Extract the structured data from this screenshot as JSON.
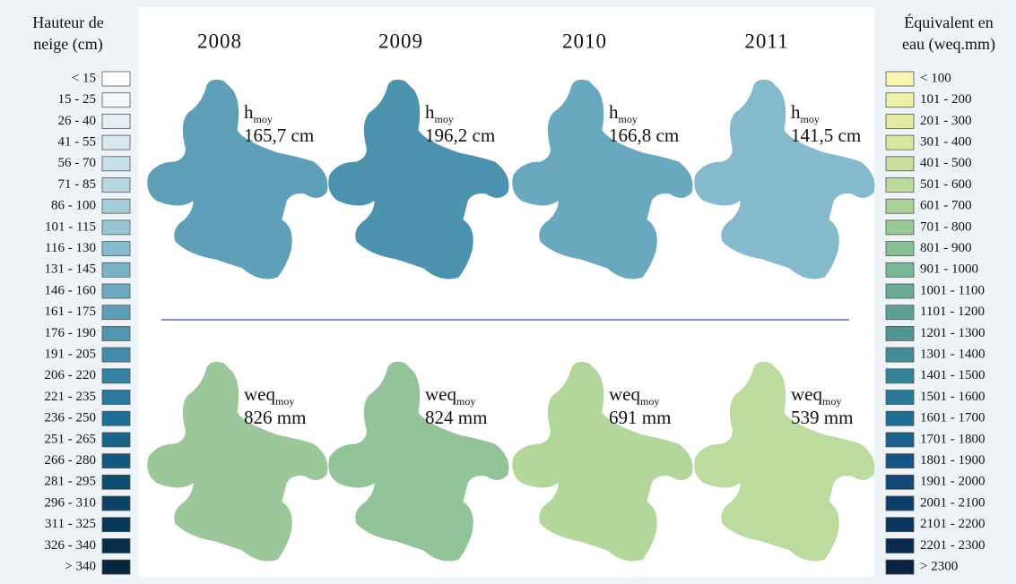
{
  "left_legend": {
    "title": [
      "Hauteur de",
      "neige (cm)"
    ],
    "items": [
      {
        "label": "< 15",
        "color": "#ffffff"
      },
      {
        "label": "15 - 25",
        "color": "#f2f7f9"
      },
      {
        "label": "26 - 40",
        "color": "#e3eff3"
      },
      {
        "label": "41 - 55",
        "color": "#d5e8ee"
      },
      {
        "label": "56 - 70",
        "color": "#c6e0e8"
      },
      {
        "label": "71 - 85",
        "color": "#b6d7e1"
      },
      {
        "label": "86 - 100",
        "color": "#a6ceda"
      },
      {
        "label": "101 - 115",
        "color": "#97c5d3"
      },
      {
        "label": "116 - 130",
        "color": "#88bccd"
      },
      {
        "label": "131 - 145",
        "color": "#7ab3c6"
      },
      {
        "label": "146 - 160",
        "color": "#6ca9bf"
      },
      {
        "label": "161 - 175",
        "color": "#5e9fb8"
      },
      {
        "label": "176 - 190",
        "color": "#5096b2"
      },
      {
        "label": "191 - 205",
        "color": "#438cab"
      },
      {
        "label": "206 - 220",
        "color": "#3682a4"
      },
      {
        "label": "221 - 235",
        "color": "#2a789c"
      },
      {
        "label": "236 - 250",
        "color": "#206e93"
      },
      {
        "label": "251 - 265",
        "color": "#18638a"
      },
      {
        "label": "266 - 280",
        "color": "#12587f"
      },
      {
        "label": "281 - 295",
        "color": "#0e4d72"
      },
      {
        "label": "296 - 310",
        "color": "#0b4265"
      },
      {
        "label": "311 - 325",
        "color": "#093857"
      },
      {
        "label": "326 - 340",
        "color": "#082e49"
      },
      {
        "label": "> 340",
        "color": "#07253b"
      }
    ]
  },
  "right_legend": {
    "title": [
      "Équivalent en",
      "eau (weq.mm)"
    ],
    "items": [
      {
        "label": "< 100",
        "color": "#f7f3b0"
      },
      {
        "label": "101 - 200",
        "color": "#eef0a8"
      },
      {
        "label": "201 - 300",
        "color": "#e4eba3"
      },
      {
        "label": "301 - 400",
        "color": "#d8e59f"
      },
      {
        "label": "401 - 500",
        "color": "#c9de9c"
      },
      {
        "label": "501 - 600",
        "color": "#badb9b"
      },
      {
        "label": "601 - 700",
        "color": "#aad29a"
      },
      {
        "label": "701 - 800",
        "color": "#9ac998"
      },
      {
        "label": "801 - 900",
        "color": "#8abf97"
      },
      {
        "label": "901 - 1000",
        "color": "#7ab595"
      },
      {
        "label": "1001 - 1100",
        "color": "#6bab95"
      },
      {
        "label": "1101 - 1200",
        "color": "#5ca094"
      },
      {
        "label": "1201 - 1300",
        "color": "#4f9694"
      },
      {
        "label": "1301 - 1400",
        "color": "#418c95"
      },
      {
        "label": "1401 - 1500",
        "color": "#358296"
      },
      {
        "label": "1501 - 1600",
        "color": "#2a7796"
      },
      {
        "label": "1601 - 1700",
        "color": "#216c93"
      },
      {
        "label": "1701 - 1800",
        "color": "#1a608c"
      },
      {
        "label": "1801 - 1900",
        "color": "#155484"
      },
      {
        "label": "1901 - 2000",
        "color": "#114878"
      },
      {
        "label": "2001 - 2100",
        "color": "#0e3d6a"
      },
      {
        "label": "2101 - 2200",
        "color": "#0c335c"
      },
      {
        "label": "2201 - 2300",
        "color": "#0a2a4e"
      },
      {
        "label": "> 2300",
        "color": "#092242"
      }
    ]
  },
  "years": [
    "2008",
    "2009",
    "2010",
    "2011"
  ],
  "rows": [
    {
      "var": "h",
      "sub": "moy",
      "values": [
        "165,7 cm",
        "196,2 cm",
        "166,8 cm",
        "141,5 cm"
      ],
      "fills": [
        "#5f9fb8",
        "#4d92ae",
        "#6aa8c0",
        "#85b9cc"
      ]
    },
    {
      "var": "weq",
      "sub": "moy",
      "values": [
        "826 mm",
        "824 mm",
        "691 mm",
        "539 mm"
      ],
      "fills": [
        "#9cc79a",
        "#92c399",
        "#b3d69b",
        "#bcdb9e"
      ]
    }
  ]
}
